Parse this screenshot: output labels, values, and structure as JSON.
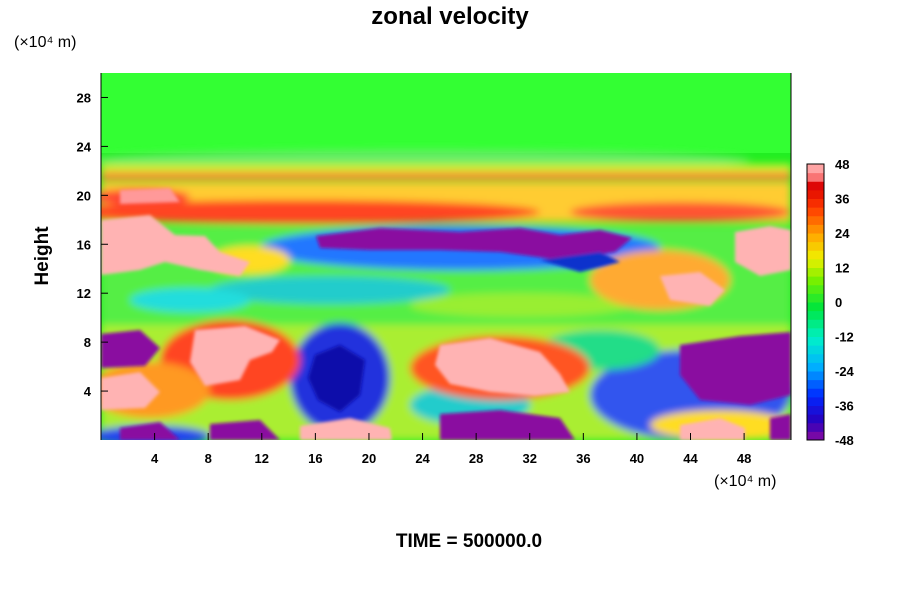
{
  "chart_data": {
    "type": "heatmap",
    "title": "zonal velocity",
    "ylabel": "Height",
    "y_unit": "(×10⁴ m)",
    "x_unit": "(×10⁴ m)",
    "xlim": [
      0,
      51.5
    ],
    "ylim": [
      0,
      30
    ],
    "x_ticks": [
      4,
      8,
      12,
      16,
      20,
      24,
      28,
      32,
      36,
      40,
      44,
      48
    ],
    "y_ticks": [
      4,
      8,
      12,
      16,
      20,
      24,
      28
    ],
    "colorbar": {
      "min": -48,
      "max": 48,
      "ticks": [
        48,
        36,
        24,
        12,
        0,
        -12,
        -24,
        -36,
        -48
      ]
    },
    "footer": "TIME = 500000.0"
  }
}
